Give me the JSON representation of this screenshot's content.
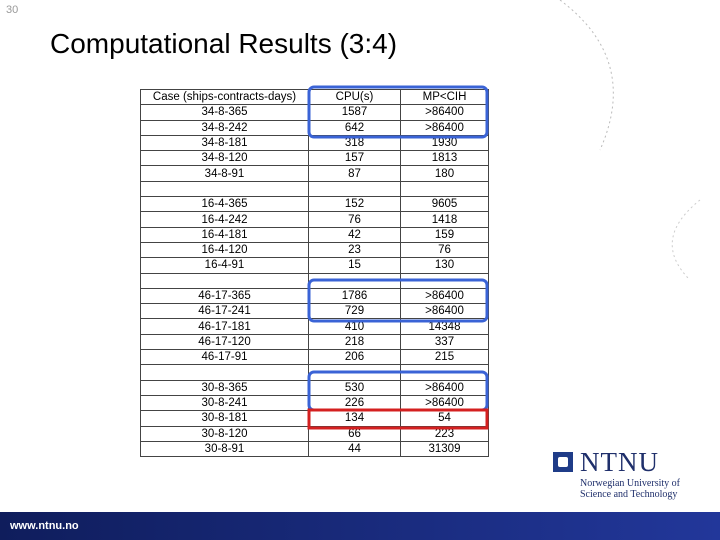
{
  "page_number": "30",
  "title": "Computational Results (3:4)",
  "table": {
    "header": [
      "Case (ships-contracts-days)",
      "CPU(s)",
      "MP<CIH"
    ],
    "groups": [
      {
        "rows": [
          [
            "34-8-365",
            "1587",
            ">86400"
          ],
          [
            "34-8-242",
            "642",
            ">86400"
          ],
          [
            "34-8-181",
            "318",
            "1930"
          ],
          [
            "34-8-120",
            "157",
            "1813"
          ],
          [
            "34-8-91",
            "87",
            "180"
          ]
        ]
      },
      {
        "rows": [
          [
            "16-4-365",
            "152",
            "9605"
          ],
          [
            "16-4-242",
            "76",
            "1418"
          ],
          [
            "16-4-181",
            "42",
            "159"
          ],
          [
            "16-4-120",
            "23",
            "76"
          ],
          [
            "16-4-91",
            "15",
            "130"
          ]
        ]
      },
      {
        "rows": [
          [
            "46-17-365",
            "1786",
            ">86400"
          ],
          [
            "46-17-241",
            "729",
            ">86400"
          ],
          [
            "46-17-181",
            "410",
            "14348"
          ],
          [
            "46-17-120",
            "218",
            "337"
          ],
          [
            "46-17-91",
            "206",
            "215"
          ]
        ]
      },
      {
        "rows": [
          [
            "30-8-365",
            "530",
            ">86400"
          ],
          [
            "30-8-241",
            "226",
            ">86400"
          ],
          [
            "30-8-181",
            "134",
            "54"
          ],
          [
            "30-8-120",
            "66",
            "223"
          ],
          [
            "30-8-91",
            "44",
            "31309"
          ]
        ]
      }
    ]
  },
  "logo": {
    "name": "NTNU",
    "line1": "Norwegian University of",
    "line2": "Science and Technology"
  },
  "footer": {
    "url": "www.ntnu.no"
  }
}
